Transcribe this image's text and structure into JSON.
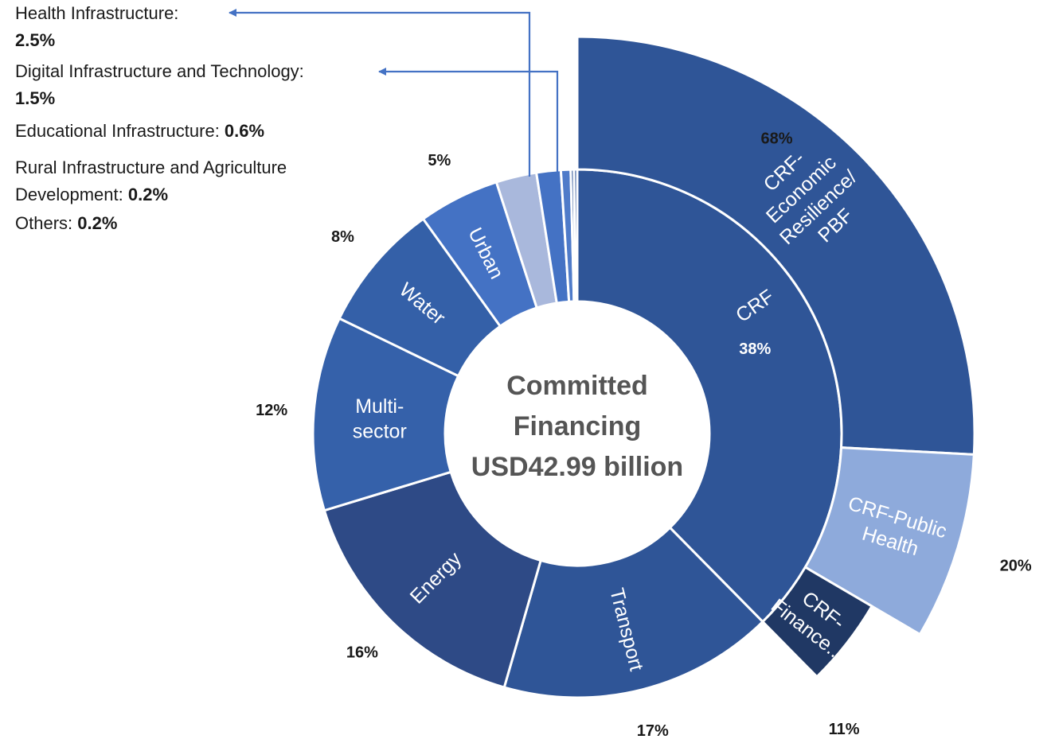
{
  "chart_data": {
    "type": "sunburst",
    "center": {
      "lines": [
        "Committed",
        "Financing",
        "USD42.99 billion"
      ]
    },
    "inner_ring": [
      {
        "name": "CRF",
        "value": 38,
        "label": "38%",
        "color": "#2f5597",
        "text": [
          "CRF"
        ],
        "show_value_inside": true
      },
      {
        "name": "Transport",
        "value": 17,
        "label": "17%",
        "color": "#2f5597",
        "text": [
          "Transport"
        ]
      },
      {
        "name": "Energy",
        "value": 16,
        "label": "16%",
        "color": "#2e4a86",
        "text": [
          "Energy"
        ]
      },
      {
        "name": "Multi-sector",
        "value": 12,
        "label": "12%",
        "color": "#3561aa",
        "text": [
          "Multi-",
          "sector"
        ]
      },
      {
        "name": "Water",
        "value": 8,
        "label": "8%",
        "color": "#3460a8",
        "text": [
          "Water"
        ]
      },
      {
        "name": "Urban",
        "value": 5,
        "label": "5%",
        "color": "#4472c4",
        "text": [
          "Urban"
        ]
      },
      {
        "name": "Health Infrastructure",
        "value": 2.5,
        "label": "",
        "color": "#a9b8dc",
        "text": []
      },
      {
        "name": "Digital Infrastructure and Technology",
        "value": 1.5,
        "label": "",
        "color": "#4472c4",
        "text": []
      },
      {
        "name": "Educational Infrastructure",
        "value": 0.6,
        "label": "",
        "color": "#4f7bc9",
        "text": []
      },
      {
        "name": "Rural Infrastructure and Agriculture Development",
        "value": 0.2,
        "label": "",
        "color": "#2f5597",
        "text": []
      },
      {
        "name": "Others",
        "value": 0.2,
        "label": "",
        "color": "#2f5597",
        "text": []
      }
    ],
    "outer_ring_parent": "CRF",
    "outer_ring": [
      {
        "name": "CRF-Economic Resilience/PBF",
        "value": 68,
        "label": "68%",
        "color": "#2f5597",
        "text": [
          "CRF-",
          "Economic",
          "Resilience/",
          "PBF"
        ]
      },
      {
        "name": "CRF-Public Health",
        "value": 20,
        "label": "20%",
        "color": "#8eaadb",
        "text": [
          "CRF-Public",
          "Health"
        ]
      },
      {
        "name": "CRF-Finance...",
        "value": 11,
        "label": "11%",
        "color": "#203864",
        "text": [
          "CRF-",
          "Finance..."
        ]
      }
    ]
  },
  "side_labels": [
    {
      "name": "Health Infrastructure:",
      "value": "2.5%"
    },
    {
      "name": "Digital Infrastructure and Technology:",
      "value": "1.5%"
    },
    {
      "name": "Educational Infrastructure: ",
      "value": "0.6%"
    },
    {
      "name": "Rural Infrastructure and Agriculture",
      "name2": "Development: ",
      "value": "0.2%"
    },
    {
      "name": "Others: ",
      "value": "0.2%"
    }
  ],
  "colors": {
    "connector": "#4472c4",
    "background": "#ffffff"
  }
}
